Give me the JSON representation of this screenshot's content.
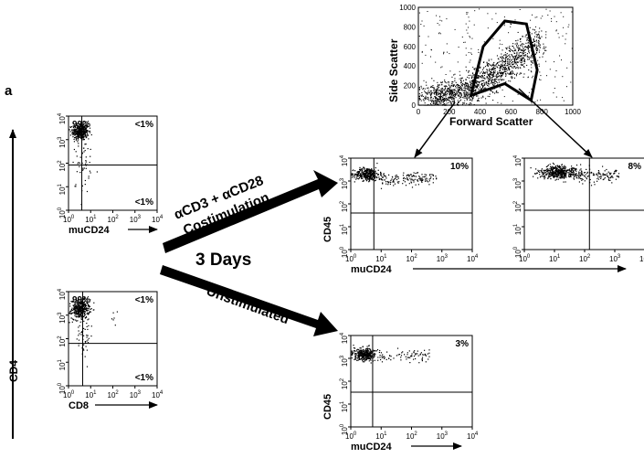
{
  "panel_label": "a",
  "side_axis_label": "CD4",
  "gating_plot": {
    "xlabel": "Forward Scatter",
    "ylabel": "Side Scatter",
    "x_ticks": [
      "0",
      "200",
      "400",
      "600",
      "800",
      "1000"
    ],
    "y_ticks": [
      "0",
      "200",
      "400",
      "600",
      "800",
      "1000"
    ]
  },
  "arrow_labels": {
    "stim_line1": "αCD3 + αCD28",
    "stim_line2": "Costimulation",
    "days": "3 Days",
    "unstim": "Unstimulated"
  },
  "log_ticks": {
    "base": "10",
    "exponents": [
      "0",
      "1",
      "2",
      "3",
      "4"
    ]
  },
  "plots": {
    "cd4_mucd24": {
      "xlabel": "muCD24",
      "ylabel": "",
      "q_ul": "99%",
      "q_ur": "<1%",
      "q_lr": "<1%"
    },
    "cd4_cd8": {
      "xlabel": "CD8",
      "ylabel": "",
      "q_ul": "99%",
      "q_ur": "<1%",
      "q_lr": "<1%"
    },
    "stim_gate1": {
      "xlabel": "muCD24",
      "ylabel": "CD45",
      "q_ur": "10%"
    },
    "stim_gate2": {
      "xlabel": "",
      "ylabel": "",
      "q_ur": "8%"
    },
    "unstim": {
      "xlabel": "muCD24",
      "ylabel": "CD45",
      "q_ur": "3%"
    }
  }
}
